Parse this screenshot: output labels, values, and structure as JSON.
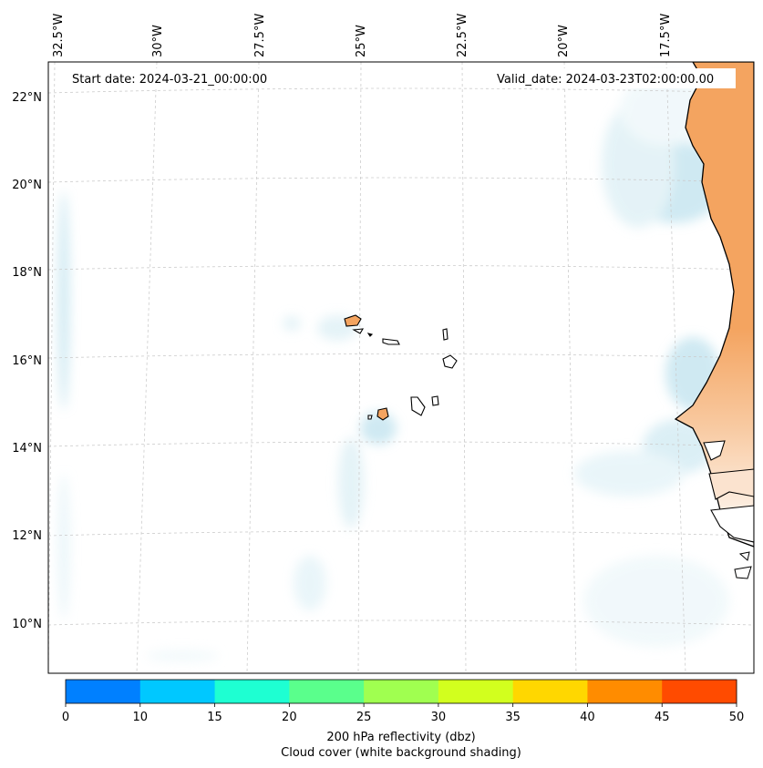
{
  "map": {
    "start_date_label": "Start date: 2024-03-21_00:00:00",
    "valid_date_label": "Valid_date: 2024-03-23T02:00:00.00",
    "lon_labels": [
      "32.5°W",
      "30°W",
      "27.5°W",
      "25°W",
      "22.5°W",
      "20°W",
      "17.5°W"
    ],
    "lat_labels": [
      "22°N",
      "20°N",
      "18°N",
      "16°N",
      "14°N",
      "12°N",
      "10°N"
    ]
  },
  "colorbar": {
    "ticks": [
      "0",
      "10",
      "15",
      "20",
      "25",
      "30",
      "35",
      "40",
      "45",
      "50"
    ],
    "bins": [
      0,
      10,
      15,
      20,
      25,
      30,
      35,
      40,
      45,
      50
    ],
    "colors": [
      "#0080ff",
      "#00c8ff",
      "#1effd2",
      "#5aff8c",
      "#a0ff50",
      "#d2ff1e",
      "#ffd700",
      "#ff8c00",
      "#ff4b00"
    ],
    "label_line1": "200 hPa reflectivity (dbz)",
    "label_line2": "Cloud cover (white background shading)"
  },
  "colors": {
    "land_orange": "#f4a460",
    "cloud_blue": "#a8d8e8"
  }
}
